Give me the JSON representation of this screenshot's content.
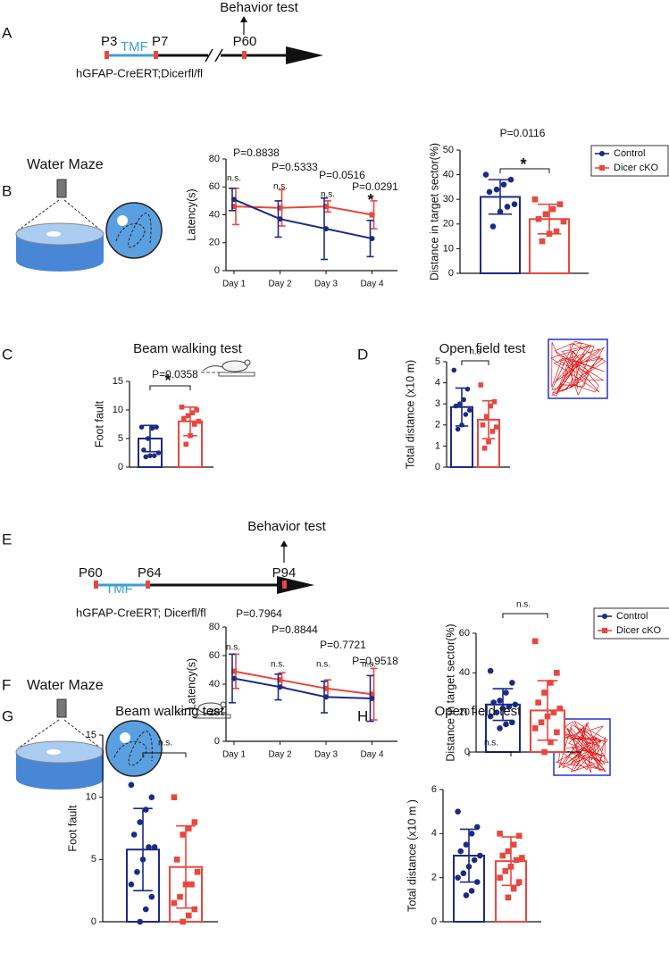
{
  "panel_letters": [
    "A",
    "B",
    "C",
    "D",
    "E",
    "F",
    "G",
    "H"
  ],
  "timeline_a": {
    "event": "Behavior test",
    "start": "P3",
    "treatment": "TMF",
    "end": "P7",
    "test": "P60",
    "genotype": "hGFAP-CreERT;Dicerfl/fl"
  },
  "timeline_e": {
    "event": "Behavior test",
    "start": "P60",
    "treatment": "TMF",
    "end": "P64",
    "test": "P94",
    "genotype": "hGFAP-CreERT; Dicerfl/fl"
  },
  "illustrations": [
    "Water Maze",
    "Water Maze"
  ],
  "chart_data": [
    {
      "type": "line",
      "y_label": "Latency(s)",
      "ylim": [
        0,
        80
      ],
      "yticks": [
        0,
        20,
        40,
        60,
        80
      ],
      "categories": [
        "Day 1",
        "Day 2",
        "Day 3",
        "Day 4"
      ],
      "p_labels": [
        "P=0.8838",
        "P=0.5333",
        "P=0.0516",
        "P=0.0291"
      ],
      "sig_labels": [
        "n.s.",
        "n.s.",
        "n.s.",
        "*"
      ],
      "series": [
        {
          "color": "#1c2a86",
          "marker": "circle",
          "values": [
            51,
            37,
            30,
            23
          ],
          "errors": [
            8,
            13,
            22,
            13
          ]
        },
        {
          "color": "#e8473f",
          "marker": "square",
          "values": [
            46,
            45,
            46,
            40
          ],
          "errors": [
            13,
            13,
            4,
            10
          ]
        }
      ]
    },
    {
      "type": "bar",
      "y_label": "Distance in  target sector(%)",
      "ylim": [
        0,
        50
      ],
      "yticks": [
        0,
        10,
        20,
        30,
        40,
        50
      ],
      "p_label": "P=0.0116",
      "sig_label": "*",
      "series": [
        {
          "name": "Control",
          "color": "#1c2a86",
          "marker": "circle",
          "values": [
            31
          ],
          "errors": [
            7
          ],
          "points": [
            40,
            38,
            36,
            34,
            33,
            28,
            27,
            25,
            19
          ]
        },
        {
          "name": "Dicer cKO",
          "color": "#e8473f",
          "marker": "square",
          "values": [
            22
          ],
          "errors": [
            6
          ],
          "points": [
            30,
            28,
            26,
            24,
            22,
            21,
            17,
            16,
            13
          ]
        }
      ]
    },
    {
      "type": "bar",
      "title": "Beam walking test",
      "y_label": "Foot fault",
      "ylim": [
        0,
        15
      ],
      "yticks": [
        0,
        5,
        10,
        15
      ],
      "p_label": "P=0.0358",
      "sig_label": "*",
      "series": [
        {
          "color": "#1c2a86",
          "marker": "circle",
          "values": [
            5
          ],
          "errors": [
            2.3
          ],
          "points": [
            7,
            7,
            6.8,
            5,
            3,
            2.5,
            2,
            2,
            1.8
          ]
        },
        {
          "color": "#e8473f",
          "marker": "square",
          "values": [
            8
          ],
          "errors": [
            2.5
          ],
          "points": [
            10.5,
            10,
            9.5,
            9,
            8.5,
            8,
            7.5,
            5.5,
            4
          ]
        }
      ]
    },
    {
      "type": "bar",
      "title": "Open field test",
      "y_label": "Total distance (x10 m)",
      "ylim": [
        0,
        5
      ],
      "yticks": [
        0,
        1,
        2,
        3,
        4,
        5
      ],
      "sig_label": "n.s",
      "series": [
        {
          "color": "#1c2a86",
          "marker": "circle",
          "values": [
            2.85
          ],
          "errors": [
            0.9
          ],
          "points": [
            4.6,
            3.7,
            3.2,
            3,
            2.9,
            2.7,
            2.5,
            2,
            1.8
          ]
        },
        {
          "color": "#e8473f",
          "marker": "square",
          "values": [
            2.25
          ],
          "errors": [
            0.9
          ],
          "points": [
            3.9,
            3.1,
            2.9,
            2.4,
            2,
            1.9,
            1.7,
            1.2,
            0.9
          ]
        }
      ]
    },
    {
      "type": "line",
      "y_label": "Latency(s)",
      "ylim": [
        0,
        80
      ],
      "yticks": [
        0,
        20,
        40,
        60,
        80
      ],
      "categories": [
        "Day 1",
        "Day 2",
        "Day 3",
        "Day 4"
      ],
      "p_labels": [
        "P=0.7964",
        "P=0.8844",
        "P=0.7721",
        "P=0.9518"
      ],
      "sig_labels": [
        "n.s.",
        "n.s.",
        "n.s.",
        "n.s."
      ],
      "series": [
        {
          "color": "#1c2a86",
          "marker": "circle",
          "values": [
            44,
            38,
            31,
            30
          ],
          "errors": [
            17,
            9,
            11,
            16
          ]
        },
        {
          "color": "#e8473f",
          "marker": "square",
          "values": [
            49,
            43,
            37,
            33
          ],
          "errors": [
            12,
            5,
            6,
            18
          ]
        }
      ]
    },
    {
      "type": "bar",
      "y_label": "Distance in target sector(%)",
      "ylim": [
        0,
        60
      ],
      "yticks": [
        0,
        20,
        40,
        60
      ],
      "sig_label": "n.s.",
      "series": [
        {
          "name": "Control",
          "color": "#1c2a86",
          "marker": "circle",
          "values": [
            24
          ],
          "errors": [
            8
          ],
          "points": [
            41,
            35,
            30,
            26,
            25,
            24,
            23,
            22,
            20,
            18,
            15,
            14,
            12
          ]
        },
        {
          "name": "Dicer cKO",
          "color": "#e8473f",
          "marker": "square",
          "values": [
            21
          ],
          "errors": [
            15
          ],
          "points": [
            56,
            40,
            35,
            30,
            25,
            22,
            20,
            18,
            15,
            12,
            10,
            5,
            0
          ]
        }
      ]
    },
    {
      "type": "bar",
      "title": "Beam walking test",
      "y_label": "Foot fault",
      "ylim": [
        0,
        15
      ],
      "yticks": [
        0,
        5,
        10,
        15
      ],
      "sig_label": "n.s.",
      "series": [
        {
          "color": "#1c2a86",
          "marker": "circle",
          "values": [
            5.8
          ],
          "errors": [
            3.3
          ],
          "points": [
            11,
            10,
            9,
            8,
            7,
            6,
            6,
            5,
            4,
            3,
            2,
            1,
            0
          ]
        },
        {
          "color": "#e8473f",
          "marker": "square",
          "values": [
            4.4
          ],
          "errors": [
            3.3
          ],
          "points": [
            10,
            8,
            7.5,
            7,
            5,
            4,
            3,
            3,
            2,
            1.5,
            1,
            0.5,
            0
          ]
        }
      ]
    },
    {
      "type": "bar",
      "title": "Open field test",
      "y_label": "Total distance (x10 m )",
      "ylim": [
        0,
        6
      ],
      "yticks": [
        0,
        2,
        4,
        6
      ],
      "sig_label": "n.s.",
      "series": [
        {
          "color": "#1c2a86",
          "marker": "circle",
          "values": [
            3.0
          ],
          "errors": [
            1.2
          ],
          "points": [
            5,
            4.3,
            4,
            3.5,
            3.2,
            3,
            2.8,
            2.5,
            2.2,
            2,
            1.8,
            1.4,
            1.2
          ]
        },
        {
          "color": "#e8473f",
          "marker": "square",
          "values": [
            2.75
          ],
          "errors": [
            1.1
          ],
          "points": [
            4,
            3.9,
            3.5,
            3.2,
            3,
            2.9,
            2.8,
            2.5,
            2.3,
            2,
            1.8,
            1.5,
            1.1
          ]
        }
      ]
    }
  ]
}
